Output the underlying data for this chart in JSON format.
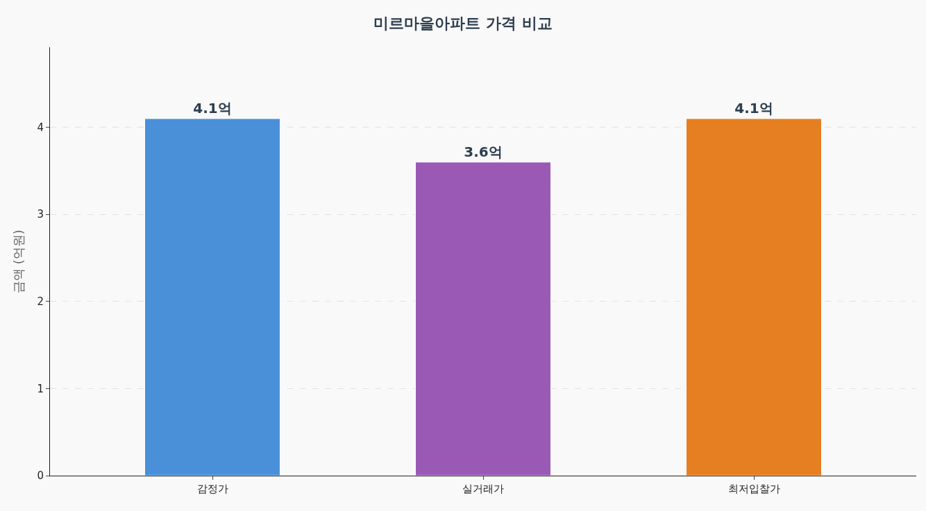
{
  "chart_data": {
    "type": "bar",
    "title": "미르마을아파트 가격 비교",
    "ylabel": "금액 (억원)",
    "categories": [
      "감정가",
      "실거래가",
      "최저입찰가"
    ],
    "values": [
      4.1,
      3.6,
      4.1
    ],
    "colors": [
      "#4a90d9",
      "#9b59b6",
      "#e67e22"
    ],
    "value_labels": [
      "4.1억",
      "3.6억",
      "4.1억"
    ],
    "ylim": [
      0,
      4.92
    ],
    "yticks": [
      0,
      1,
      2,
      3,
      4
    ],
    "grid": "y"
  }
}
